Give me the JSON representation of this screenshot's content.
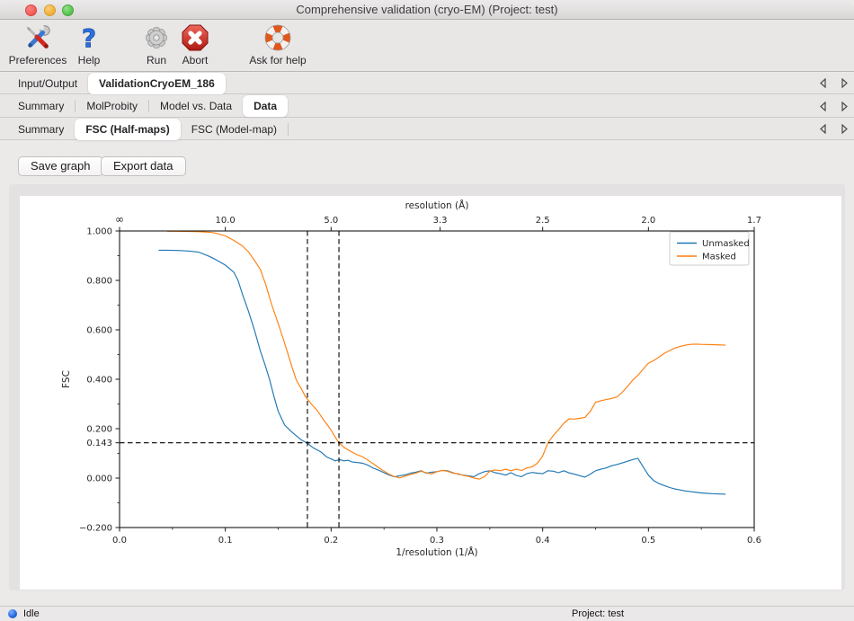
{
  "window": {
    "title": "Comprehensive validation (cryo-EM) (Project: test)"
  },
  "toolbar": {
    "preferences": "Preferences",
    "help": "Help",
    "run": "Run",
    "abort": "Abort",
    "ask_for_help": "Ask for help"
  },
  "tabs_row1": {
    "items": [
      {
        "label": "Input/Output"
      },
      {
        "label": "ValidationCryoEM_186"
      }
    ]
  },
  "tabs_row2": {
    "items": [
      {
        "label": "Summary"
      },
      {
        "label": "MolProbity"
      },
      {
        "label": "Model vs. Data"
      },
      {
        "label": "Data"
      }
    ]
  },
  "tabs_row3": {
    "items": [
      {
        "label": "Summary"
      },
      {
        "label": "FSC (Half-maps)"
      },
      {
        "label": "FSC (Model-map)"
      }
    ]
  },
  "actions": {
    "save_graph": "Save graph",
    "export_data": "Export data"
  },
  "statusbar": {
    "state": "Idle",
    "project": "Project: test"
  },
  "chart_data": {
    "type": "line",
    "title": "",
    "xlabel": "1/resolution (1/Å)",
    "xlabel_top": "resolution (Å)",
    "ylabel": "FSC",
    "xlim": [
      0.0,
      0.6
    ],
    "ylim": [
      -0.2,
      1.0
    ],
    "grid": false,
    "legend_position": "upper right",
    "x_ticks": [
      {
        "v": 0.0,
        "label": "0.0"
      },
      {
        "v": 0.1,
        "label": "0.1"
      },
      {
        "v": 0.2,
        "label": "0.2"
      },
      {
        "v": 0.3,
        "label": "0.3"
      },
      {
        "v": 0.4,
        "label": "0.4"
      },
      {
        "v": 0.5,
        "label": "0.5"
      },
      {
        "v": 0.6,
        "label": "0.6"
      }
    ],
    "x_minor_ticks": [
      0.05,
      0.15,
      0.25,
      0.35,
      0.45,
      0.55
    ],
    "y_ticks": [
      {
        "v": 1.0,
        "label": "1.000"
      },
      {
        "v": 0.8,
        "label": "0.800"
      },
      {
        "v": 0.6,
        "label": "0.600"
      },
      {
        "v": 0.4,
        "label": "0.400"
      },
      {
        "v": 0.2,
        "label": "0.200"
      },
      {
        "v": 0.143,
        "label": "0.143"
      },
      {
        "v": 0.0,
        "label": "0.000"
      },
      {
        "v": -0.2,
        "label": "−0.200"
      }
    ],
    "y_minor_ticks": [
      0.9,
      0.7,
      0.5,
      0.3,
      0.1,
      -0.1
    ],
    "top_ticks": [
      {
        "v": 0.0,
        "label": "∞"
      },
      {
        "v": 0.1,
        "label": "10.0"
      },
      {
        "v": 0.2,
        "label": "5.0"
      },
      {
        "v": 0.30303,
        "label": "3.3"
      },
      {
        "v": 0.4,
        "label": "2.5"
      },
      {
        "v": 0.5,
        "label": "2.0"
      },
      {
        "v": 0.6,
        "label": "1.7"
      }
    ],
    "fsc_threshold": {
      "y": 0.143,
      "x_crossings": [
        0.1776,
        0.2074
      ]
    },
    "series": [
      {
        "name": "Unmasked",
        "color": "#1f77b4",
        "points": [
          [
            0.037,
            0.922
          ],
          [
            0.045,
            0.922
          ],
          [
            0.055,
            0.921
          ],
          [
            0.065,
            0.919
          ],
          [
            0.075,
            0.914
          ],
          [
            0.085,
            0.897
          ],
          [
            0.09,
            0.886
          ],
          [
            0.1,
            0.862
          ],
          [
            0.108,
            0.833
          ],
          [
            0.112,
            0.8
          ],
          [
            0.116,
            0.746
          ],
          [
            0.122,
            0.673
          ],
          [
            0.128,
            0.592
          ],
          [
            0.133,
            0.516
          ],
          [
            0.138,
            0.452
          ],
          [
            0.142,
            0.396
          ],
          [
            0.146,
            0.33
          ],
          [
            0.15,
            0.27
          ],
          [
            0.156,
            0.215
          ],
          [
            0.162,
            0.19
          ],
          [
            0.168,
            0.168
          ],
          [
            0.172,
            0.154
          ],
          [
            0.177,
            0.143
          ],
          [
            0.183,
            0.123
          ],
          [
            0.19,
            0.107
          ],
          [
            0.196,
            0.085
          ],
          [
            0.2,
            0.078
          ],
          [
            0.204,
            0.07
          ],
          [
            0.208,
            0.075
          ],
          [
            0.212,
            0.07
          ],
          [
            0.216,
            0.072
          ],
          [
            0.22,
            0.065
          ],
          [
            0.225,
            0.063
          ],
          [
            0.23,
            0.06
          ],
          [
            0.235,
            0.052
          ],
          [
            0.24,
            0.04
          ],
          [
            0.245,
            0.032
          ],
          [
            0.25,
            0.022
          ],
          [
            0.255,
            0.012
          ],
          [
            0.26,
            0.005
          ],
          [
            0.265,
            0.01
          ],
          [
            0.27,
            0.013
          ],
          [
            0.275,
            0.02
          ],
          [
            0.28,
            0.024
          ],
          [
            0.285,
            0.03
          ],
          [
            0.29,
            0.02
          ],
          [
            0.295,
            0.024
          ],
          [
            0.3,
            0.026
          ],
          [
            0.305,
            0.031
          ],
          [
            0.31,
            0.03
          ],
          [
            0.315,
            0.022
          ],
          [
            0.32,
            0.016
          ],
          [
            0.325,
            0.012
          ],
          [
            0.33,
            0.009
          ],
          [
            0.335,
            0.006
          ],
          [
            0.34,
            0.018
          ],
          [
            0.345,
            0.026
          ],
          [
            0.35,
            0.03
          ],
          [
            0.355,
            0.022
          ],
          [
            0.36,
            0.018
          ],
          [
            0.365,
            0.012
          ],
          [
            0.37,
            0.022
          ],
          [
            0.375,
            0.011
          ],
          [
            0.38,
            0.006
          ],
          [
            0.385,
            0.018
          ],
          [
            0.39,
            0.023
          ],
          [
            0.395,
            0.02
          ],
          [
            0.4,
            0.018
          ],
          [
            0.405,
            0.03
          ],
          [
            0.41,
            0.028
          ],
          [
            0.415,
            0.022
          ],
          [
            0.42,
            0.03
          ],
          [
            0.425,
            0.021
          ],
          [
            0.43,
            0.016
          ],
          [
            0.435,
            0.01
          ],
          [
            0.44,
            0.004
          ],
          [
            0.445,
            0.016
          ],
          [
            0.45,
            0.03
          ],
          [
            0.455,
            0.036
          ],
          [
            0.46,
            0.041
          ],
          [
            0.465,
            0.05
          ],
          [
            0.47,
            0.055
          ],
          [
            0.475,
            0.061
          ],
          [
            0.48,
            0.068
          ],
          [
            0.485,
            0.075
          ],
          [
            0.49,
            0.08
          ],
          [
            0.495,
            0.045
          ],
          [
            0.5,
            0.012
          ],
          [
            0.505,
            -0.01
          ],
          [
            0.51,
            -0.022
          ],
          [
            0.515,
            -0.03
          ],
          [
            0.52,
            -0.038
          ],
          [
            0.525,
            -0.044
          ],
          [
            0.53,
            -0.048
          ],
          [
            0.535,
            -0.052
          ],
          [
            0.54,
            -0.055
          ],
          [
            0.55,
            -0.06
          ],
          [
            0.56,
            -0.063
          ],
          [
            0.573,
            -0.065
          ]
        ]
      },
      {
        "name": "Masked",
        "color": "#ff7f0e",
        "points": [
          [
            0.045,
            0.999
          ],
          [
            0.055,
            0.999
          ],
          [
            0.065,
            0.998
          ],
          [
            0.075,
            0.997
          ],
          [
            0.085,
            0.995
          ],
          [
            0.09,
            0.992
          ],
          [
            0.1,
            0.98
          ],
          [
            0.108,
            0.962
          ],
          [
            0.116,
            0.94
          ],
          [
            0.122,
            0.915
          ],
          [
            0.128,
            0.878
          ],
          [
            0.133,
            0.845
          ],
          [
            0.138,
            0.785
          ],
          [
            0.144,
            0.7
          ],
          [
            0.15,
            0.625
          ],
          [
            0.155,
            0.56
          ],
          [
            0.159,
            0.505
          ],
          [
            0.163,
            0.45
          ],
          [
            0.167,
            0.398
          ],
          [
            0.172,
            0.36
          ],
          [
            0.176,
            0.328
          ],
          [
            0.182,
            0.296
          ],
          [
            0.187,
            0.273
          ],
          [
            0.193,
            0.235
          ],
          [
            0.199,
            0.2
          ],
          [
            0.203,
            0.172
          ],
          [
            0.207,
            0.145
          ],
          [
            0.212,
            0.125
          ],
          [
            0.218,
            0.109
          ],
          [
            0.224,
            0.096
          ],
          [
            0.23,
            0.086
          ],
          [
            0.235,
            0.072
          ],
          [
            0.24,
            0.058
          ],
          [
            0.245,
            0.042
          ],
          [
            0.25,
            0.028
          ],
          [
            0.255,
            0.015
          ],
          [
            0.26,
            0.006
          ],
          [
            0.265,
            0.001
          ],
          [
            0.27,
            0.008
          ],
          [
            0.275,
            0.014
          ],
          [
            0.28,
            0.02
          ],
          [
            0.285,
            0.028
          ],
          [
            0.29,
            0.022
          ],
          [
            0.295,
            0.017
          ],
          [
            0.3,
            0.026
          ],
          [
            0.305,
            0.031
          ],
          [
            0.31,
            0.028
          ],
          [
            0.315,
            0.02
          ],
          [
            0.32,
            0.018
          ],
          [
            0.325,
            0.011
          ],
          [
            0.33,
            0.007
          ],
          [
            0.335,
            0.0
          ],
          [
            0.34,
            -0.004
          ],
          [
            0.345,
            0.006
          ],
          [
            0.35,
            0.028
          ],
          [
            0.355,
            0.033
          ],
          [
            0.36,
            0.03
          ],
          [
            0.365,
            0.036
          ],
          [
            0.37,
            0.03
          ],
          [
            0.375,
            0.036
          ],
          [
            0.38,
            0.031
          ],
          [
            0.385,
            0.041
          ],
          [
            0.39,
            0.046
          ],
          [
            0.395,
            0.06
          ],
          [
            0.4,
            0.09
          ],
          [
            0.405,
            0.143
          ],
          [
            0.41,
            0.172
          ],
          [
            0.415,
            0.196
          ],
          [
            0.42,
            0.222
          ],
          [
            0.425,
            0.24
          ],
          [
            0.43,
            0.239
          ],
          [
            0.435,
            0.242
          ],
          [
            0.44,
            0.246
          ],
          [
            0.445,
            0.27
          ],
          [
            0.45,
            0.307
          ],
          [
            0.455,
            0.313
          ],
          [
            0.46,
            0.318
          ],
          [
            0.465,
            0.322
          ],
          [
            0.47,
            0.328
          ],
          [
            0.475,
            0.346
          ],
          [
            0.48,
            0.37
          ],
          [
            0.485,
            0.396
          ],
          [
            0.49,
            0.416
          ],
          [
            0.495,
            0.441
          ],
          [
            0.5,
            0.465
          ],
          [
            0.505,
            0.476
          ],
          [
            0.51,
            0.49
          ],
          [
            0.515,
            0.505
          ],
          [
            0.52,
            0.516
          ],
          [
            0.525,
            0.526
          ],
          [
            0.53,
            0.533
          ],
          [
            0.535,
            0.538
          ],
          [
            0.54,
            0.541
          ],
          [
            0.545,
            0.542
          ],
          [
            0.55,
            0.541
          ],
          [
            0.56,
            0.54
          ],
          [
            0.573,
            0.538
          ]
        ]
      }
    ]
  }
}
